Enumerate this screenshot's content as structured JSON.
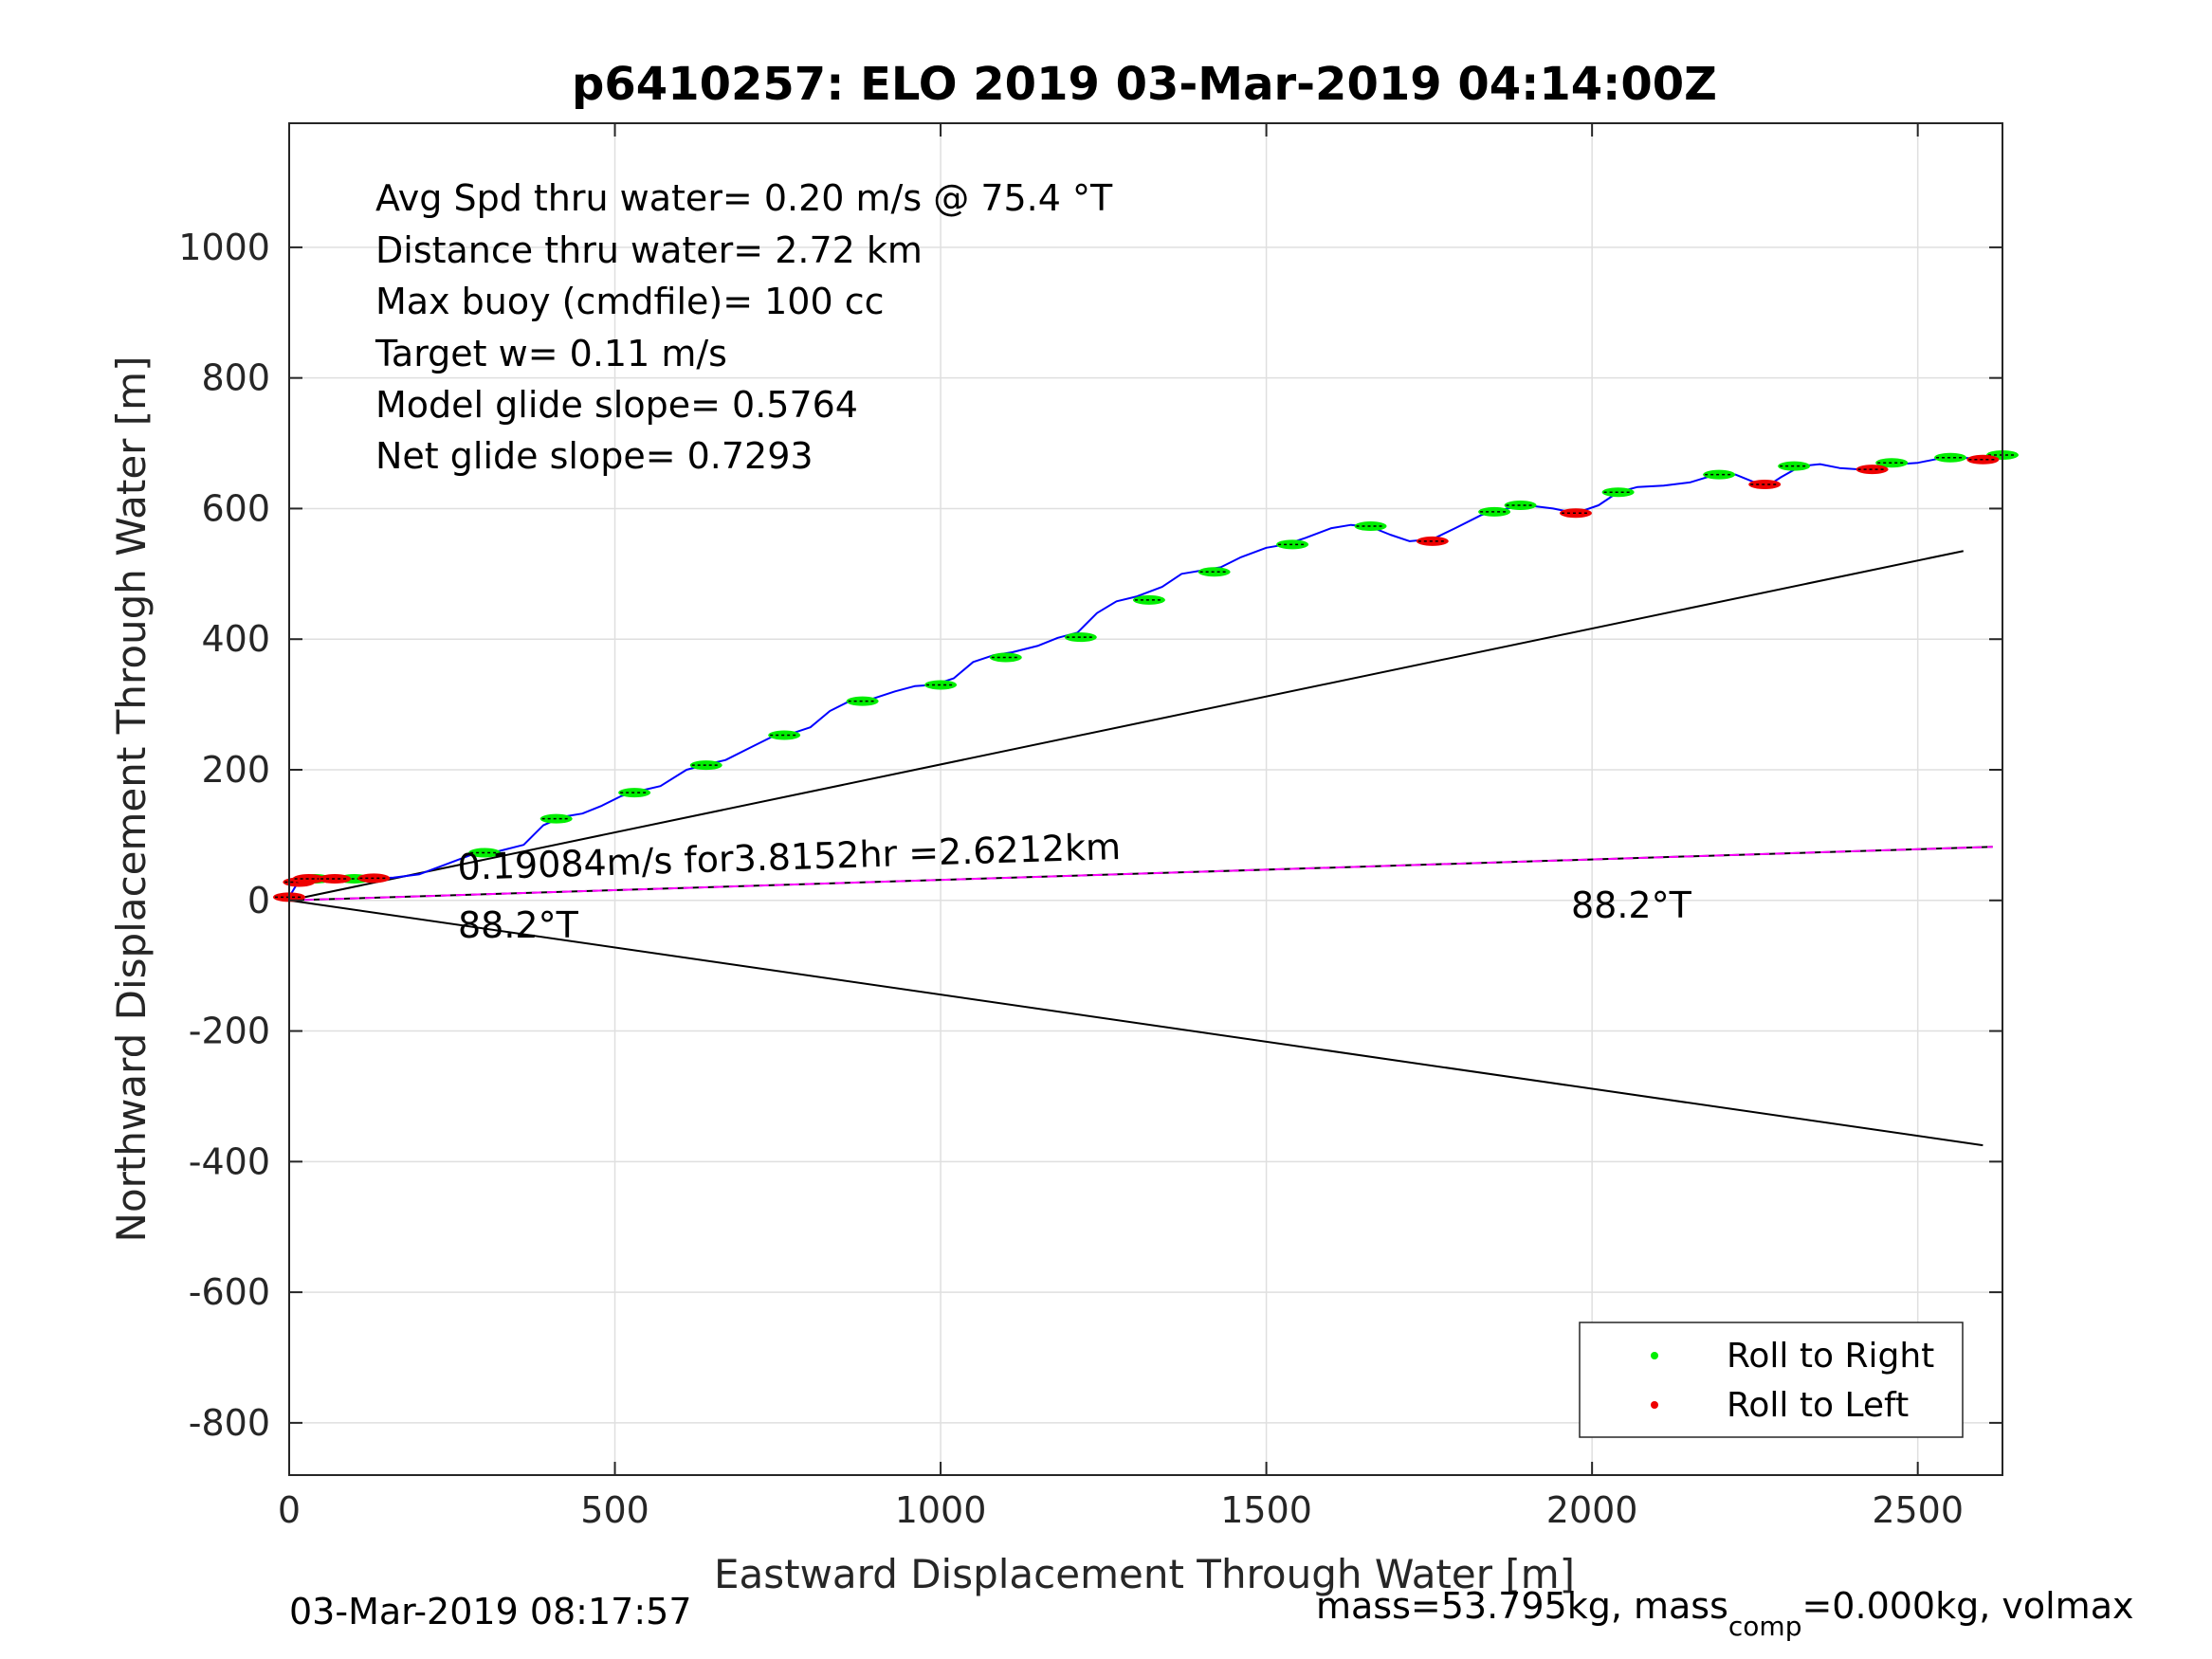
{
  "chart_data": {
    "type": "line",
    "title": "p6410257: ELO 2019 03-Mar-2019 04:14:00Z",
    "xlabel": "Eastward Displacement Through Water [m]",
    "ylabel": "Northward Displacement Through Water [m]",
    "xlim": [
      0,
      2630
    ],
    "ylim": [
      -880,
      1190
    ],
    "xticks": [
      "0",
      "500",
      "1000",
      "1500",
      "2000",
      "2500"
    ],
    "yticks": [
      "-800",
      "-600",
      "-400",
      "-200",
      "0",
      "200",
      "400",
      "600",
      "800",
      "1000"
    ],
    "grid": true,
    "stats": [
      "Avg Spd thru water=  0.20 m/s @  75.4 °T",
      "Distance thru water=  2.72 km",
      "Max buoy (cmdfile)= 100 cc",
      "Target w= 0.11 m/s",
      "Model glide slope= 0.5764",
      "Net glide slope= 0.7293"
    ],
    "annotations": {
      "drift": "0.19084m/s for3.8152hr =2.6212km",
      "heading_left": "88.2°T",
      "heading_right": "88.2°T"
    },
    "track": {
      "x": [
        0,
        10,
        20,
        30,
        50,
        80,
        120,
        160,
        200,
        240,
        280,
        320,
        360,
        390,
        420,
        450,
        480,
        510,
        540,
        570,
        610,
        640,
        670,
        710,
        740,
        770,
        800,
        830,
        860,
        890,
        930,
        960,
        990,
        1020,
        1050,
        1080,
        1110,
        1150,
        1180,
        1210,
        1240,
        1270,
        1300,
        1340,
        1370,
        1400,
        1430,
        1460,
        1500,
        1530,
        1560,
        1600,
        1630,
        1660,
        1690,
        1720,
        1755,
        1790,
        1830,
        1870,
        1900,
        1940,
        1975,
        2010,
        2040,
        2070,
        2110,
        2150,
        2190,
        2220,
        2250,
        2270,
        2290,
        2320,
        2350,
        2380,
        2410,
        2440,
        2470,
        2500,
        2540,
        2570,
        2600,
        2630
      ],
      "y": [
        5,
        22,
        32,
        33,
        32,
        33,
        33,
        35,
        40,
        55,
        70,
        75,
        85,
        115,
        128,
        133,
        145,
        160,
        168,
        175,
        200,
        208,
        215,
        235,
        250,
        255,
        265,
        290,
        305,
        307,
        320,
        328,
        330,
        340,
        365,
        375,
        380,
        390,
        402,
        410,
        440,
        458,
        465,
        480,
        500,
        505,
        510,
        525,
        540,
        545,
        555,
        570,
        575,
        572,
        560,
        550,
        553,
        570,
        590,
        600,
        605,
        600,
        593,
        605,
        625,
        633,
        635,
        640,
        652,
        652,
        640,
        635,
        648,
        665,
        668,
        662,
        660,
        665,
        668,
        670,
        678,
        678,
        675,
        682
      ]
    },
    "series": [
      {
        "name": "Roll to Right",
        "color": "#00ee00",
        "points": [
          [
            40,
            33
          ],
          [
            100,
            33
          ],
          [
            300,
            73
          ],
          [
            410,
            125
          ],
          [
            530,
            165
          ],
          [
            640,
            207
          ],
          [
            760,
            253
          ],
          [
            880,
            305
          ],
          [
            1000,
            330
          ],
          [
            1100,
            372
          ],
          [
            1215,
            403
          ],
          [
            1320,
            460
          ],
          [
            1420,
            503
          ],
          [
            1540,
            545
          ],
          [
            1660,
            573
          ],
          [
            1850,
            595
          ],
          [
            1890,
            605
          ],
          [
            2040,
            625
          ],
          [
            2195,
            652
          ],
          [
            2310,
            665
          ],
          [
            2460,
            670
          ],
          [
            2550,
            678
          ],
          [
            2630,
            682
          ]
        ]
      },
      {
        "name": "Roll to Left",
        "color": "#ee0000",
        "points": [
          [
            0,
            5
          ],
          [
            15,
            28
          ],
          [
            30,
            33
          ],
          [
            70,
            33
          ],
          [
            130,
            34
          ],
          [
            1755,
            550
          ],
          [
            1975,
            593
          ],
          [
            2265,
            637
          ],
          [
            2430,
            660
          ],
          [
            2600,
            675
          ]
        ]
      }
    ],
    "reference_lines": [
      {
        "from": [
          0,
          0
        ],
        "to": [
          2570,
          535
        ],
        "color": "#000000"
      },
      {
        "from": [
          0,
          0
        ],
        "to": [
          2600,
          -375
        ],
        "color": "#000000"
      },
      {
        "from": [
          0,
          0
        ],
        "to": [
          2615,
          82
        ],
        "color": "#000000"
      },
      {
        "from": [
          0,
          0
        ],
        "to": [
          2615,
          82
        ],
        "color": "#ff00ff",
        "dashed": true
      }
    ],
    "legend": {
      "placement": "bottom-right",
      "entries": [
        "Roll to Right",
        "Roll to Left"
      ]
    }
  },
  "footer": {
    "timestamp": "03-Mar-2019 08:17:57",
    "mass_text_1": "mass=53.795kg, mass",
    "mass_sub": "comp",
    "mass_text_2": "=0.000kg, volmax"
  }
}
